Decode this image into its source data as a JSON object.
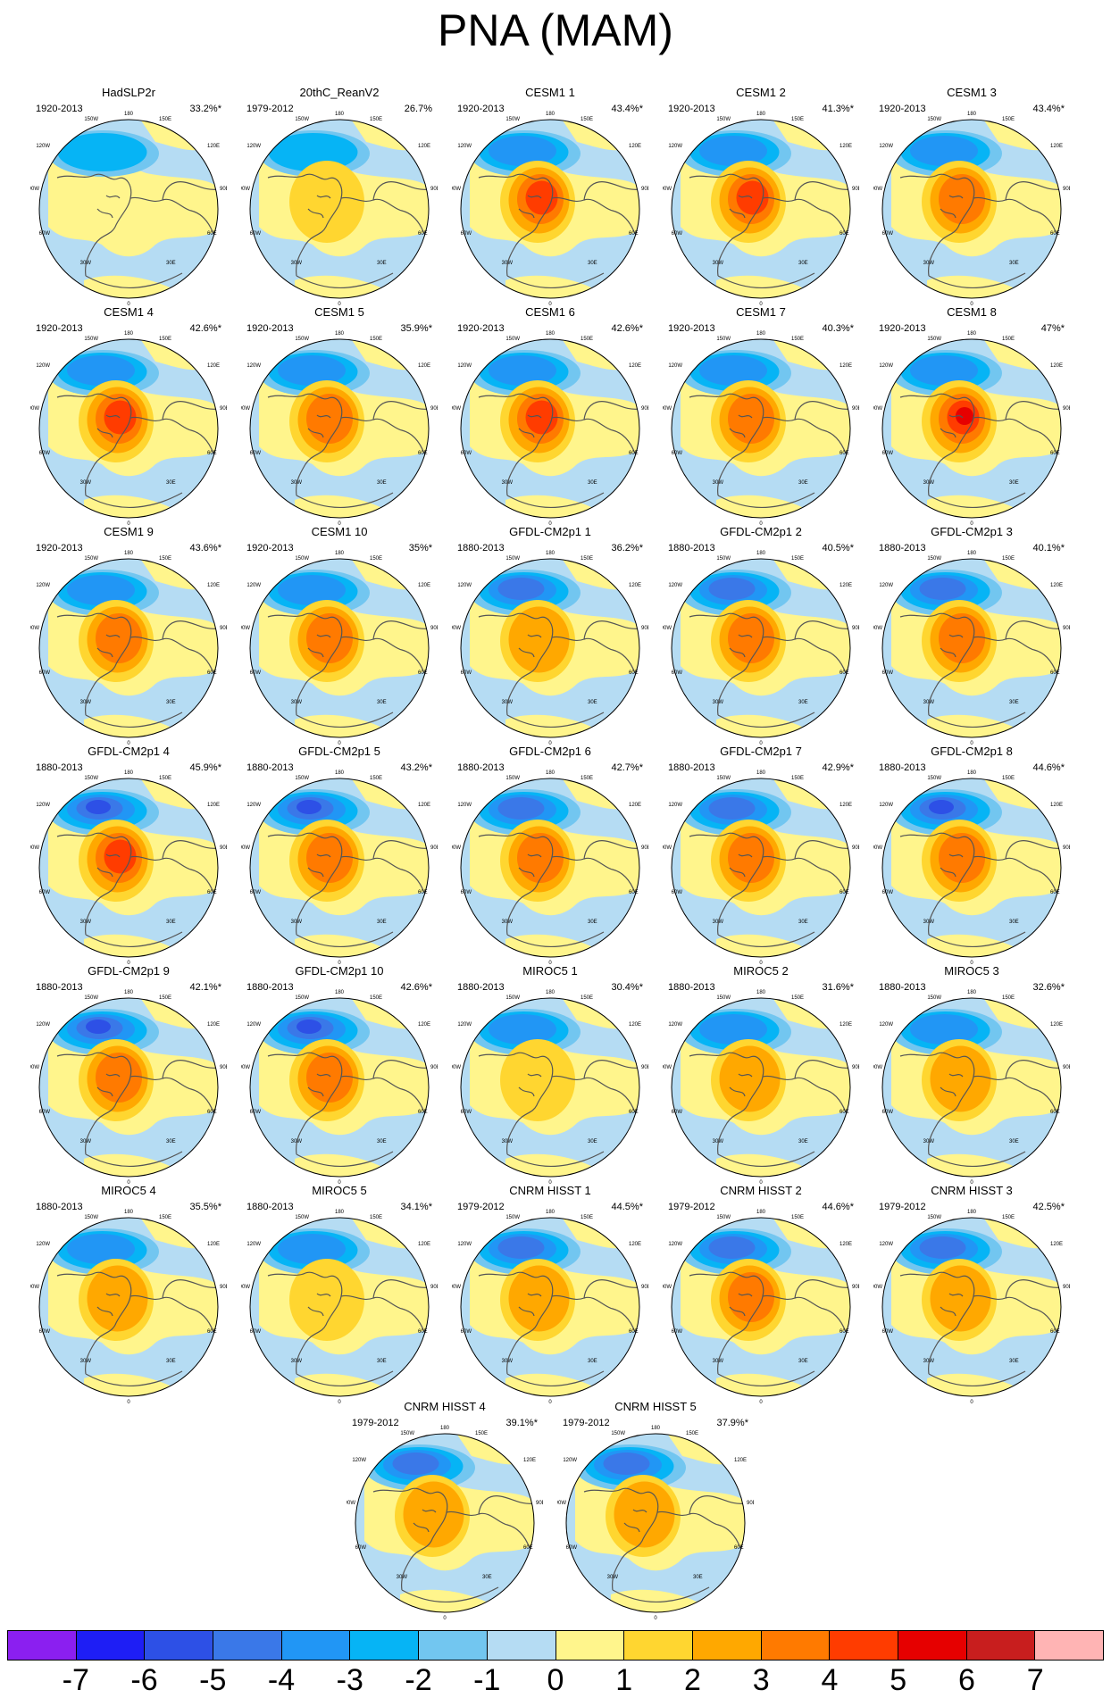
{
  "title": "PNA (MAM)",
  "colors": {
    "ocean": "#b5dcf3",
    "land_outline": "#555555",
    "neutral_positive": "#fff58c"
  },
  "lon_labels": [
    "180",
    "150W",
    "150E",
    "120W",
    "120E",
    "90W",
    "90E",
    "60W",
    "60E",
    "30W",
    "30E",
    "0"
  ],
  "panels": [
    {
      "name": "HadSLP2r",
      "period": "1920-2013",
      "pct": "33.2%*",
      "neg": 2,
      "pos": 0
    },
    {
      "name": "20thC_ReanV2",
      "period": "1979-2012",
      "pct": "26.7%",
      "neg": 2,
      "pos": 1
    },
    {
      "name": "CESM1 1",
      "period": "1920-2013",
      "pct": "43.4%*",
      "neg": 3,
      "pos": 4
    },
    {
      "name": "CESM1 2",
      "period": "1920-2013",
      "pct": "41.3%*",
      "neg": 3,
      "pos": 4
    },
    {
      "name": "CESM1 3",
      "period": "1920-2013",
      "pct": "43.4%*",
      "neg": 3,
      "pos": 3
    },
    {
      "name": "CESM1 4",
      "period": "1920-2013",
      "pct": "42.6%*",
      "neg": 3,
      "pos": 4
    },
    {
      "name": "CESM1 5",
      "period": "1920-2013",
      "pct": "35.9%*",
      "neg": 3,
      "pos": 3
    },
    {
      "name": "CESM1 6",
      "period": "1920-2013",
      "pct": "42.6%*",
      "neg": 3,
      "pos": 4
    },
    {
      "name": "CESM1 7",
      "period": "1920-2013",
      "pct": "40.3%*",
      "neg": 3,
      "pos": 3
    },
    {
      "name": "CESM1 8",
      "period": "1920-2013",
      "pct": "47%*",
      "neg": 3,
      "pos": 5
    },
    {
      "name": "CESM1 9",
      "period": "1920-2013",
      "pct": "43.6%*",
      "neg": 3,
      "pos": 3
    },
    {
      "name": "CESM1 10",
      "period": "1920-2013",
      "pct": "35%*",
      "neg": 3,
      "pos": 3
    },
    {
      "name": "GFDL-CM2p1 1",
      "period": "1880-2013",
      "pct": "36.2%*",
      "neg": 4,
      "pos": 2
    },
    {
      "name": "GFDL-CM2p1 2",
      "period": "1880-2013",
      "pct": "40.5%*",
      "neg": 4,
      "pos": 3
    },
    {
      "name": "GFDL-CM2p1 3",
      "period": "1880-2013",
      "pct": "40.1%*",
      "neg": 4,
      "pos": 3
    },
    {
      "name": "GFDL-CM2p1 4",
      "period": "1880-2013",
      "pct": "45.9%*",
      "neg": 5,
      "pos": 4
    },
    {
      "name": "GFDL-CM2p1 5",
      "period": "1880-2013",
      "pct": "43.2%*",
      "neg": 5,
      "pos": 3
    },
    {
      "name": "GFDL-CM2p1 6",
      "period": "1880-2013",
      "pct": "42.7%*",
      "neg": 4,
      "pos": 3
    },
    {
      "name": "GFDL-CM2p1 7",
      "period": "1880-2013",
      "pct": "42.9%*",
      "neg": 4,
      "pos": 3
    },
    {
      "name": "GFDL-CM2p1 8",
      "period": "1880-2013",
      "pct": "44.6%*",
      "neg": 5,
      "pos": 3
    },
    {
      "name": "GFDL-CM2p1 9",
      "period": "1880-2013",
      "pct": "42.1%*",
      "neg": 5,
      "pos": 3
    },
    {
      "name": "GFDL-CM2p1 10",
      "period": "1880-2013",
      "pct": "42.6%*",
      "neg": 5,
      "pos": 3
    },
    {
      "name": "MIROC5 1",
      "period": "1880-2013",
      "pct": "30.4%*",
      "neg": 3,
      "pos": 1
    },
    {
      "name": "MIROC5 2",
      "period": "1880-2013",
      "pct": "31.6%*",
      "neg": 3,
      "pos": 2
    },
    {
      "name": "MIROC5 3",
      "period": "1880-2013",
      "pct": "32.6%*",
      "neg": 3,
      "pos": 2
    },
    {
      "name": "MIROC5 4",
      "period": "1880-2013",
      "pct": "35.5%*",
      "neg": 3,
      "pos": 2
    },
    {
      "name": "MIROC5 5",
      "period": "1880-2013",
      "pct": "34.1%*",
      "neg": 3,
      "pos": 1
    },
    {
      "name": "CNRM HISST 1",
      "period": "1979-2012",
      "pct": "44.5%*",
      "neg": 4,
      "pos": 2
    },
    {
      "name": "CNRM HISST 2",
      "period": "1979-2012",
      "pct": "44.6%*",
      "neg": 4,
      "pos": 3
    },
    {
      "name": "CNRM HISST 3",
      "period": "1979-2012",
      "pct": "42.5%*",
      "neg": 4,
      "pos": 2
    },
    {
      "name": "CNRM HISST 4",
      "period": "1979-2012",
      "pct": "39.1%*",
      "neg": 4,
      "pos": 2
    },
    {
      "name": "CNRM HISST 5",
      "period": "1979-2012",
      "pct": "37.9%*",
      "neg": 4,
      "pos": 2
    }
  ],
  "colorbar": {
    "colors": [
      "#8b1ff0",
      "#1e1ef5",
      "#2d50e6",
      "#3a78e8",
      "#2196f5",
      "#06b4f5",
      "#72c6f0",
      "#b5dcf3",
      "#fff58c",
      "#ffd630",
      "#ffa800",
      "#ff7a00",
      "#ff3c00",
      "#e60000",
      "#c81e1e",
      "#ffb4b4"
    ],
    "ticks": [
      "-7",
      "-6",
      "-5",
      "-4",
      "-3",
      "-2",
      "-1",
      "0",
      "1",
      "2",
      "3",
      "4",
      "5",
      "6",
      "7"
    ]
  }
}
